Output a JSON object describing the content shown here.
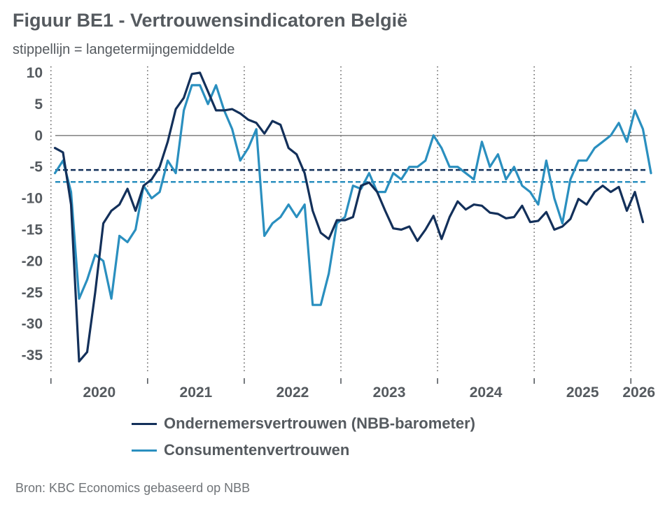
{
  "title": "Figuur BE1 - Vertrouwensindicatoren België",
  "subtitle": "stippellijn = langetermijngemiddelde",
  "source": "Bron: KBC Economics gebaseerd op NBB",
  "colors": {
    "business": "#13305a",
    "consumer": "#2a8fbf",
    "zero": "#8a8a8a",
    "grid": "#666666"
  },
  "chart_data": {
    "type": "line",
    "title": "Figuur BE1 - Vertrouwensindicatoren België",
    "ylim": [
      -38,
      11
    ],
    "yticks": [
      10,
      5,
      0,
      -5,
      -10,
      -15,
      -20,
      -25,
      -30,
      -35
    ],
    "xlim": [
      2019.9583,
      2026.2083
    ],
    "year_labels": [
      {
        "label": "2020",
        "x": 2020.5
      },
      {
        "label": "2021",
        "x": 2021.5
      },
      {
        "label": "2022",
        "x": 2022.5
      },
      {
        "label": "2023",
        "x": 2023.5
      },
      {
        "label": "2024",
        "x": 2024.5
      },
      {
        "label": "2025",
        "x": 2025.5
      },
      {
        "label": "2026",
        "x": 2026.0833
      }
    ],
    "year_boundaries": [
      2020,
      2021,
      2022,
      2023,
      2024,
      2025,
      2026
    ],
    "legend_position": "bottom",
    "series": [
      {
        "name": "Ondernemersvertrouwen (NBB-barometer)",
        "start": 2020.0417,
        "long_term_average": -5.5,
        "values": [
          -2,
          -2.7,
          -11,
          -36,
          -34.5,
          -25,
          -14,
          -12,
          -11,
          -8.5,
          -12,
          -8,
          -7,
          -5,
          -1,
          4.2,
          6,
          9.8,
          10,
          7,
          4,
          4,
          4.2,
          3.5,
          2.5,
          2,
          0.3,
          2.3,
          1.7,
          -2,
          -3,
          -6,
          -12,
          -15.5,
          -16.5,
          -13.5,
          -13.5,
          -13,
          -8,
          -7.5,
          -9,
          -12,
          -14.8,
          -15,
          -14.5,
          -16.8,
          -15,
          -12.8,
          -16.5,
          -13,
          -10.5,
          -11.8,
          -11,
          -11.2,
          -12.3,
          -12.5,
          -13.2,
          -13,
          -11.2,
          -13.8,
          -13.6,
          -12.2,
          -15,
          -14.5,
          -13.3,
          -10.1,
          -11,
          -9,
          -8,
          -9,
          -8.2,
          -12,
          -9,
          -13.8
        ]
      },
      {
        "name": "Consumentenvertrouwen",
        "start": 2020.0417,
        "long_term_average": -7.4,
        "values": [
          -6,
          -4,
          -9,
          -26,
          -23,
          -19,
          -20,
          -26,
          -16,
          -17,
          -15,
          -8,
          -10,
          -9,
          -4,
          -6,
          4,
          8,
          8,
          5,
          8,
          4,
          1,
          -4,
          -2,
          1,
          -16,
          -14,
          -13,
          -11,
          -13,
          -11,
          -27,
          -27,
          -22,
          -14,
          -13,
          -8,
          -8.5,
          -6,
          -9,
          -9,
          -6,
          -7,
          -5,
          -5,
          -4,
          0,
          -2,
          -5,
          -5,
          -6,
          -7,
          -1,
          -5,
          -3,
          -7,
          -5,
          -8,
          -9,
          -11,
          -4,
          -10,
          -14,
          -7,
          -4,
          -4,
          -2,
          -1,
          0,
          2,
          -1,
          4,
          1,
          -6
        ]
      }
    ]
  }
}
